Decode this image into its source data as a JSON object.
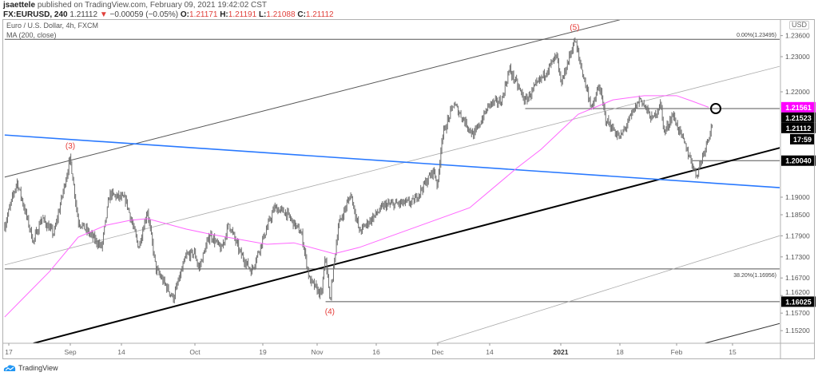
{
  "header": {
    "author": "jsaettele",
    "published": "published on TradingView.com, February 09, 2021 19:42:02 CST",
    "symbol": "FX:EURUSD, 240",
    "last": "1.21112",
    "change": "−0.00059 (−0.05%)",
    "o_label": "O:",
    "o": "1.21171",
    "h_label": "H:",
    "h": "1.21191",
    "l_label": "L:",
    "l": "1.21088",
    "c_label": "C:",
    "c": "1.21112"
  },
  "legend": {
    "title": "Euro / U.S. Dollar, 4h, FXCM",
    "ma": "MA (200, close)"
  },
  "currency": "USD",
  "footer": {
    "brand": "TradingView"
  },
  "colors": {
    "candles": "#6e6e6e",
    "ma": "#ff66ff",
    "blue_line": "#2979ff",
    "trend": "#000000",
    "down": "#e0403b",
    "ma_label": "#ff00ff"
  },
  "chart_data": {
    "type": "line",
    "title": "",
    "y_ticks": [
      "1.23600",
      "1.23000",
      "1.22000",
      "1.19000",
      "1.18500",
      "1.17900",
      "1.17300",
      "1.16700",
      "1.16200",
      "1.15700",
      "1.15200"
    ],
    "x_ticks": [
      {
        "label": "17",
        "date": "2020-08-17"
      },
      {
        "label": "Sep",
        "date": "2020-09-01"
      },
      {
        "label": "14",
        "date": "2020-09-14"
      },
      {
        "label": "Oct",
        "date": "2020-10-01"
      },
      {
        "label": "19",
        "date": "2020-10-19"
      },
      {
        "label": "Nov",
        "date": "2020-11-02"
      },
      {
        "label": "16",
        "date": "2020-11-16"
      },
      {
        "label": "Dec",
        "date": "2020-12-01"
      },
      {
        "label": "14",
        "date": "2020-12-14"
      },
      {
        "label": "2021",
        "date": "2021-01-01"
      },
      {
        "label": "18",
        "date": "2021-01-18"
      },
      {
        "label": "Feb",
        "date": "2021-02-01"
      },
      {
        "label": "15",
        "date": "2021-02-15"
      }
    ],
    "price_series": [
      [
        "2020-08-16",
        1.1818
      ],
      [
        "2020-08-19",
        1.1945
      ],
      [
        "2020-08-23",
        1.1773
      ],
      [
        "2020-08-25",
        1.1841
      ],
      [
        "2020-08-28",
        1.1795
      ],
      [
        "2020-09-01",
        1.2011
      ],
      [
        "2020-09-03",
        1.1832
      ],
      [
        "2020-09-09",
        1.1757
      ],
      [
        "2020-09-11",
        1.1909
      ],
      [
        "2020-09-15",
        1.1893
      ],
      [
        "2020-09-18",
        1.1757
      ],
      [
        "2020-09-20",
        1.1864
      ],
      [
        "2020-09-22",
        1.1695
      ],
      [
        "2020-09-26",
        1.1612
      ],
      [
        "2020-09-29",
        1.1734
      ],
      [
        "2020-10-01",
        1.1741
      ],
      [
        "2020-10-02",
        1.1695
      ],
      [
        "2020-10-05",
        1.1795
      ],
      [
        "2020-10-08",
        1.175
      ],
      [
        "2020-10-10",
        1.1825
      ],
      [
        "2020-10-13",
        1.1741
      ],
      [
        "2020-10-16",
        1.1689
      ],
      [
        "2020-10-19",
        1.178
      ],
      [
        "2020-10-22",
        1.187
      ],
      [
        "2020-10-25",
        1.1855
      ],
      [
        "2020-10-29",
        1.1795
      ],
      [
        "2020-10-31",
        1.1666
      ],
      [
        "2020-11-03",
        1.162
      ],
      [
        "2020-11-04",
        1.1734
      ],
      [
        "2020-11-05",
        1.1603
      ],
      [
        "2020-11-07",
        1.1818
      ],
      [
        "2020-11-10",
        1.1909
      ],
      [
        "2020-11-12",
        1.1802
      ],
      [
        "2020-11-18",
        1.1877
      ],
      [
        "2020-11-25",
        1.1886
      ],
      [
        "2020-11-30",
        1.1977
      ],
      [
        "2020-12-01",
        1.1932
      ],
      [
        "2020-12-02",
        1.2068
      ],
      [
        "2020-12-05",
        1.2166
      ],
      [
        "2020-12-10",
        1.2075
      ],
      [
        "2020-12-14",
        1.2166
      ],
      [
        "2020-12-17",
        1.2173
      ],
      [
        "2020-12-19",
        1.2264
      ],
      [
        "2020-12-23",
        1.2173
      ],
      [
        "2020-12-31",
        1.2302
      ],
      [
        "2021-01-01",
        1.2218
      ],
      [
        "2021-01-05",
        1.2349
      ],
      [
        "2021-01-07",
        1.2264
      ],
      [
        "2021-01-10",
        1.215
      ],
      [
        "2021-01-12",
        1.2218
      ],
      [
        "2021-01-14",
        1.212
      ],
      [
        "2021-01-18",
        1.2068
      ],
      [
        "2021-01-23",
        1.2182
      ],
      [
        "2021-01-26",
        1.212
      ],
      [
        "2021-01-28",
        1.2166
      ],
      [
        "2021-01-29",
        1.2082
      ],
      [
        "2021-01-31",
        1.2136
      ],
      [
        "2021-02-04",
        1.2023
      ],
      [
        "2021-02-06",
        1.1961
      ],
      [
        "2021-02-08",
        1.2036
      ],
      [
        "2021-02-10",
        1.2111
      ]
    ],
    "ma_series": [
      [
        "2020-08-16",
        1.1559
      ],
      [
        "2020-08-27",
        1.1689
      ],
      [
        "2020-09-03",
        1.1786
      ],
      [
        "2020-09-10",
        1.182
      ],
      [
        "2020-09-16",
        1.1834
      ],
      [
        "2020-09-20",
        1.1839
      ],
      [
        "2020-09-29",
        1.1809
      ],
      [
        "2020-10-05",
        1.1795
      ],
      [
        "2020-10-20",
        1.1766
      ],
      [
        "2020-10-27",
        1.177
      ],
      [
        "2020-11-06",
        1.1739
      ],
      [
        "2020-11-12",
        1.1757
      ],
      [
        "2020-12-09",
        1.187
      ],
      [
        "2020-12-21",
        1.1984
      ],
      [
        "2020-12-27",
        1.2036
      ],
      [
        "2021-01-06",
        1.2136
      ],
      [
        "2021-01-16",
        1.2177
      ],
      [
        "2021-01-24",
        1.2189
      ],
      [
        "2021-02-01",
        1.2189
      ],
      [
        "2021-02-05",
        1.2173
      ],
      [
        "2021-02-09",
        1.2156
      ]
    ],
    "trendlines": [
      {
        "name": "upper-channel",
        "color": "#555555",
        "width": 1,
        "from": [
          "2020-08-16",
          1.1957
        ],
        "to": [
          "2021-01-18",
          1.2405
        ]
      },
      {
        "name": "mid-channel",
        "color": "#aaaaaa",
        "width": 0.8,
        "from": [
          "2020-08-16",
          1.1707
        ],
        "to": [
          "2021-02-27",
          1.2273
        ]
      },
      {
        "name": "lower-channel",
        "color": "#aaaaaa",
        "width": 0.8,
        "from": [
          "2020-11-12",
          1.1416
        ],
        "to": [
          "2021-02-27",
          1.1791
        ]
      },
      {
        "name": "lower-dark",
        "color": "#333333",
        "width": 1,
        "from": [
          "2021-02-08",
          1.1484
        ],
        "to": [
          "2021-02-27",
          1.1541
        ]
      },
      {
        "name": "support",
        "color": "#000000",
        "width": 2,
        "from": [
          "2020-08-23",
          1.1484
        ],
        "to": [
          "2021-02-27",
          1.2041
        ]
      },
      {
        "name": "blue-trend",
        "color": "#2979ff",
        "width": 1.6,
        "from": [
          "2020-08-16",
          1.2077
        ],
        "to": [
          "2021-02-27",
          1.1927
        ]
      }
    ],
    "horizontal_levels": [
      {
        "price": 1.23495,
        "from": "2020-08-16",
        "label": "0.00%(1.23495)"
      },
      {
        "price": 1.16956,
        "from": "2020-08-16",
        "label": "38.20%(1.16956)"
      },
      {
        "price": 1.16025,
        "from": "2020-11-04"
      },
      {
        "price": 1.21523,
        "from": "2020-12-23"
      },
      {
        "price": 1.2004,
        "from": "2021-02-05"
      }
    ],
    "target_circle": {
      "date": "2021-02-10",
      "price": 1.21523
    },
    "wave_labels": [
      {
        "text": "(3)",
        "date": "2020-09-01",
        "price": 1.2011,
        "pos": "above"
      },
      {
        "text": "(4)",
        "date": "2020-11-05",
        "price": 1.1603,
        "pos": "below"
      },
      {
        "text": "(5)",
        "date": "2021-01-05",
        "price": 1.2349,
        "pos": "above"
      }
    ],
    "price_labels": [
      {
        "text": "1.21561",
        "price": 1.21561,
        "bg": "#ff00ff"
      },
      {
        "text": "1.21523",
        "price": 1.21523,
        "bg": "#000000"
      },
      {
        "text": "1.21112",
        "price": 1.21112,
        "bg": "#000000"
      },
      {
        "text": "17:59",
        "price": 1.2065,
        "bg": "#000000",
        "countdown": true
      },
      {
        "text": "1.20040",
        "price": 1.2004,
        "bg": "#000000"
      },
      {
        "text": "1.16025",
        "price": 1.16025,
        "bg": "#000000"
      }
    ]
  }
}
